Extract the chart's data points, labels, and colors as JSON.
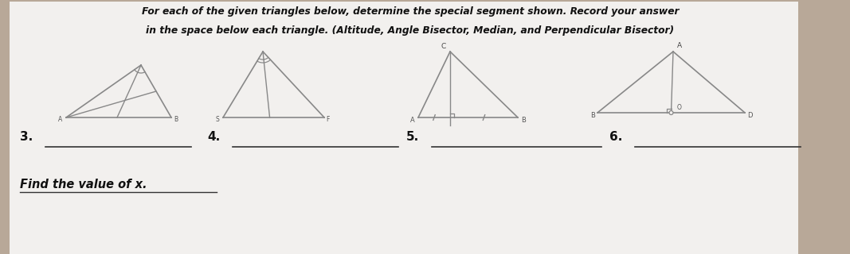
{
  "bg_color": "#b8a898",
  "page_color": "#f2f0ee",
  "title_line1": "For each of the given triangles below, determine the special segment shown. Record your answer",
  "title_line2": "in the space below each triangle. (Altitude, Angle Bisector, Median, and Perpendicular Bisector)",
  "answer_labels": [
    "3.",
    "4.",
    "5.",
    "6."
  ],
  "bottom_text": "Find the value of x.",
  "lc": "#888888",
  "text_color": "#111111"
}
